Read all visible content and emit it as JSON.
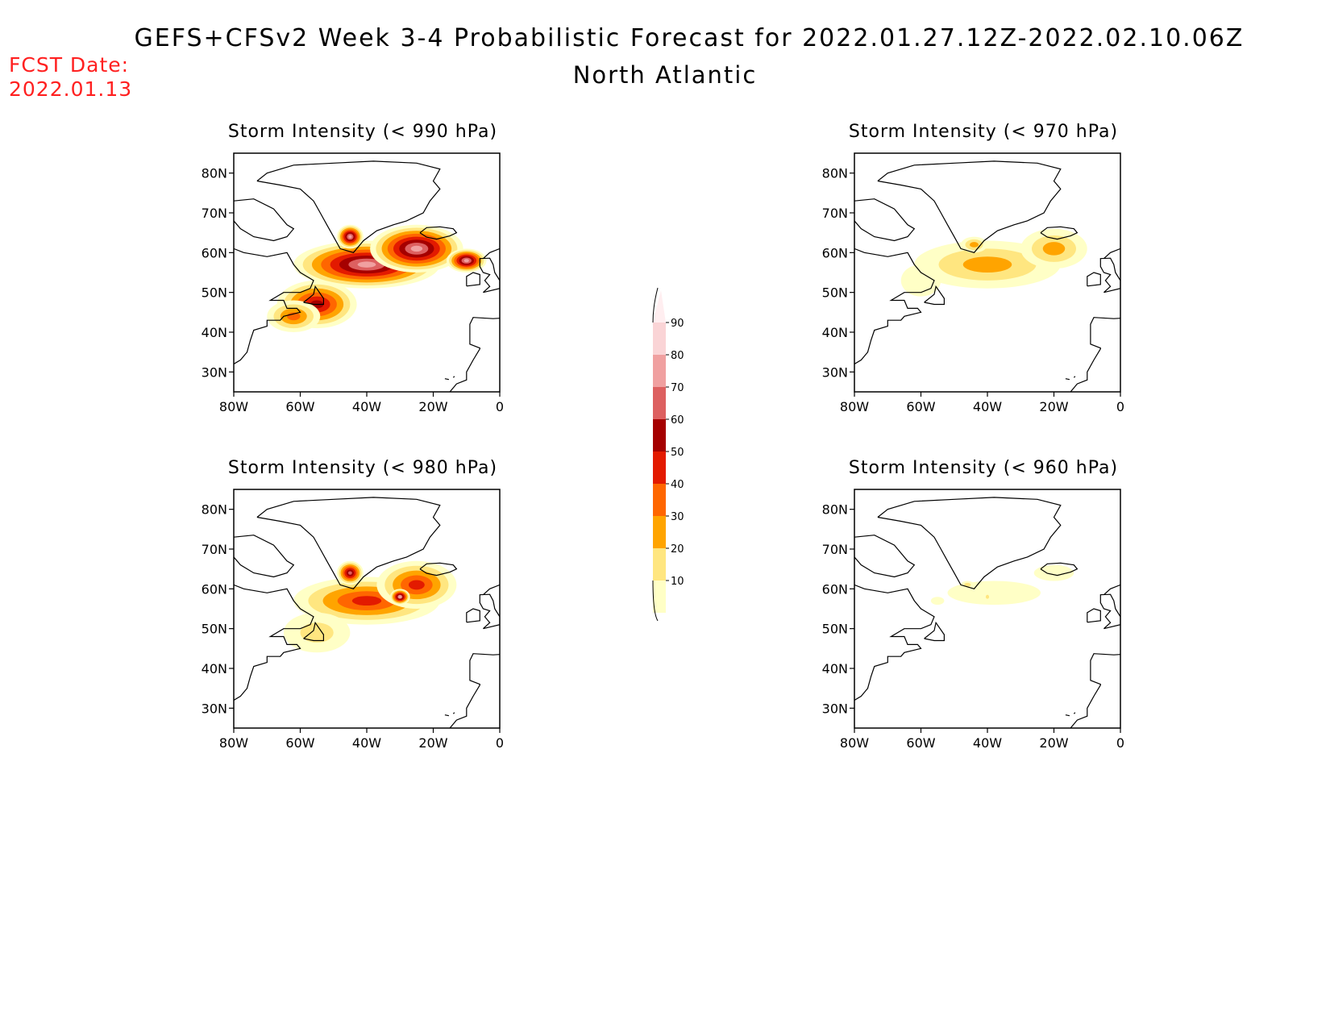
{
  "title": "GEFS+CFSv2 Week 3-4 Probabilistic Forecast for 2022.01.27.12Z-2022.02.10.06Z",
  "subtitle": "North Atlantic",
  "forecast_date_label": "FCST Date:",
  "forecast_date": "2022.01.13",
  "colors": {
    "land_outline": "#000000",
    "levels": [
      "#ffffc6",
      "#ffe680",
      "#ffa400",
      "#ff6600",
      "#e31a00",
      "#a50000",
      "#dd6060",
      "#f0a0a0",
      "#fad4d6",
      "#ffeef0"
    ]
  },
  "colorbar": {
    "ticks": [
      "10",
      "20",
      "30",
      "40",
      "50",
      "60",
      "70",
      "80",
      "90"
    ]
  },
  "axes": {
    "lon_labels": [
      "80W",
      "60W",
      "40W",
      "20W",
      "0"
    ],
    "lat_labels": [
      "80N",
      "70N",
      "60N",
      "50N",
      "40N",
      "30N"
    ]
  },
  "panels": [
    {
      "id": "p990",
      "title": "Storm Intensity (< 990 hPa)",
      "blobs": [
        {
          "lon": -55,
          "lat": 47,
          "rl": 12,
          "rt": 6,
          "v": 60
        },
        {
          "lon": -62,
          "lat": 44,
          "rl": 8,
          "rt": 4,
          "v": 45
        },
        {
          "lon": -40,
          "lat": 57,
          "rl": 22,
          "rt": 6,
          "v": 82
        },
        {
          "lon": -25,
          "lat": 61,
          "rl": 14,
          "rt": 6,
          "v": 85
        },
        {
          "lon": -45,
          "lat": 64,
          "rl": 4,
          "rt": 3,
          "v": 88
        },
        {
          "lon": -10,
          "lat": 58,
          "rl": 6,
          "rt": 3,
          "v": 80
        }
      ]
    },
    {
      "id": "p970",
      "title": "Storm Intensity (< 970 hPa)",
      "blobs": [
        {
          "lon": -40,
          "lat": 57,
          "rl": 22,
          "rt": 6,
          "v": 33
        },
        {
          "lon": -20,
          "lat": 61,
          "rl": 10,
          "rt": 5,
          "v": 38
        },
        {
          "lon": -60,
          "lat": 53,
          "rl": 6,
          "rt": 4,
          "v": 15
        },
        {
          "lon": -44,
          "lat": 62,
          "rl": 4,
          "rt": 2,
          "v": 30
        }
      ]
    },
    {
      "id": "p980",
      "title": "Storm Intensity (< 980 hPa)",
      "blobs": [
        {
          "lon": -40,
          "lat": 57,
          "rl": 22,
          "rt": 6,
          "v": 58
        },
        {
          "lon": -25,
          "lat": 61,
          "rl": 12,
          "rt": 6,
          "v": 55
        },
        {
          "lon": -55,
          "lat": 49,
          "rl": 10,
          "rt": 5,
          "v": 25
        },
        {
          "lon": -45,
          "lat": 64,
          "rl": 4,
          "rt": 3,
          "v": 70
        },
        {
          "lon": -30,
          "lat": 58,
          "rl": 3,
          "rt": 2,
          "v": 80
        }
      ]
    },
    {
      "id": "p960",
      "title": "Storm Intensity (< 960 hPa)",
      "blobs": [
        {
          "lon": -38,
          "lat": 59,
          "rl": 14,
          "rt": 3,
          "v": 14
        },
        {
          "lon": -20,
          "lat": 64,
          "rl": 6,
          "rt": 2,
          "v": 15
        },
        {
          "lon": -55,
          "lat": 57,
          "rl": 2,
          "rt": 1,
          "v": 12
        },
        {
          "lon": -46,
          "lat": 61,
          "rl": 2,
          "rt": 1,
          "v": 20
        },
        {
          "lon": -40,
          "lat": 58,
          "rl": 1,
          "rt": 1,
          "v": 22
        }
      ]
    }
  ]
}
